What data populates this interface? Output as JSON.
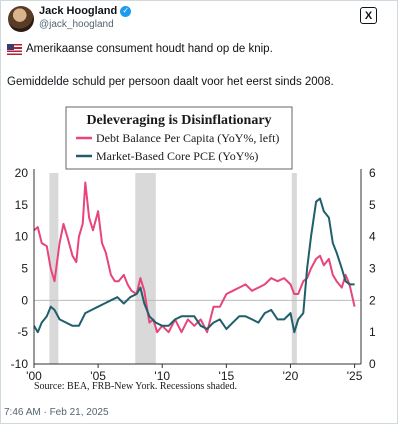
{
  "tweet": {
    "author": "Jack Hoogland",
    "handle": "@jack_hoogland",
    "verified_glyph": "✓",
    "logo_glyph": "X",
    "flag_icon": "us-flag-icon",
    "line1": "Amerikaanse consument houdt hand op de knip.",
    "line2": "Gemiddelde schuld per persoon daalt voor het eerst sinds 2008.",
    "timestamp": "7:46 AM · Feb 21, 2025"
  },
  "chart_data": {
    "type": "line",
    "title": "Deleveraging is Disinflationary",
    "source": "Source: BEA, FRB-New York. Recessions shaded.",
    "xlim": [
      2000,
      2025.5
    ],
    "x_ticks": [
      "'00",
      "'05",
      "'10",
      "'15",
      "'20",
      "'25"
    ],
    "x_tick_values": [
      2000,
      2005,
      2010,
      2015,
      2020,
      2025
    ],
    "y_left": {
      "lim": [
        -10,
        20
      ],
      "ticks": [
        "20",
        "15",
        "10",
        "5",
        "0",
        "-5",
        "-10"
      ],
      "tick_values": [
        20,
        15,
        10,
        5,
        0,
        -5,
        -10
      ]
    },
    "y_right": {
      "lim": [
        0,
        6
      ],
      "ticks": [
        "6",
        "5",
        "4",
        "3",
        "2",
        "1",
        "0"
      ],
      "tick_values": [
        6,
        5,
        4,
        3,
        2,
        1,
        0
      ]
    },
    "legend_position": "top-center",
    "recessions": [
      [
        2001.2,
        2001.9
      ],
      [
        2007.9,
        2009.5
      ],
      [
        2020.1,
        2020.5
      ]
    ],
    "series": [
      {
        "name": "Debt Balance Per Capita (YoY%, left)",
        "axis": "left",
        "color": "#e8457a",
        "x": [
          2000.0,
          2000.3,
          2000.6,
          2001.0,
          2001.3,
          2001.6,
          2002.0,
          2002.3,
          2002.6,
          2003.0,
          2003.3,
          2003.5,
          2003.8,
          2004.0,
          2004.3,
          2004.6,
          2005.0,
          2005.3,
          2005.6,
          2006.0,
          2006.3,
          2006.6,
          2007.0,
          2007.3,
          2007.6,
          2008.0,
          2008.3,
          2008.6,
          2009.0,
          2009.3,
          2009.6,
          2010.0,
          2010.5,
          2011.0,
          2011.5,
          2012.0,
          2012.5,
          2013.0,
          2013.5,
          2014.0,
          2014.5,
          2015.0,
          2015.5,
          2016.0,
          2016.5,
          2017.0,
          2017.5,
          2018.0,
          2018.5,
          2019.0,
          2019.5,
          2020.0,
          2020.3,
          2020.6,
          2021.0,
          2021.3,
          2021.6,
          2022.0,
          2022.3,
          2022.6,
          2023.0,
          2023.3,
          2023.6,
          2024.0,
          2024.3,
          2024.6,
          2025.0
        ],
        "values": [
          11,
          11.5,
          9,
          8.5,
          5,
          3,
          9,
          12,
          10,
          7,
          6,
          10,
          12,
          18.5,
          13,
          11,
          14,
          9,
          7.5,
          4,
          3,
          3,
          4,
          2.5,
          1.5,
          1,
          3.5,
          1.5,
          -3.5,
          -3,
          -5,
          -4,
          -5,
          -3,
          -5,
          -3,
          -4,
          -3,
          -5,
          -1,
          -1,
          1,
          1.5,
          2,
          2.5,
          1.5,
          2,
          2.5,
          3.5,
          3,
          3.5,
          2.5,
          1,
          1,
          3,
          3.5,
          5,
          6.5,
          7,
          5.5,
          6.5,
          4,
          3,
          2,
          4,
          2.5,
          -1
        ]
      },
      {
        "name": "Market-Based Core PCE (YoY%)",
        "axis": "right",
        "color": "#1f5f6b",
        "x": [
          2000.0,
          2000.3,
          2000.6,
          2001.0,
          2001.3,
          2001.6,
          2002.0,
          2002.5,
          2003.0,
          2003.5,
          2004.0,
          2004.5,
          2005.0,
          2005.5,
          2006.0,
          2006.5,
          2007.0,
          2007.5,
          2008.0,
          2008.3,
          2008.6,
          2009.0,
          2009.5,
          2010.0,
          2010.5,
          2011.0,
          2011.5,
          2012.0,
          2012.5,
          2013.0,
          2013.5,
          2014.0,
          2014.5,
          2015.0,
          2015.5,
          2016.0,
          2016.5,
          2017.0,
          2017.5,
          2018.0,
          2018.5,
          2019.0,
          2019.5,
          2020.0,
          2020.3,
          2020.6,
          2021.0,
          2021.3,
          2021.6,
          2022.0,
          2022.3,
          2022.6,
          2023.0,
          2023.3,
          2023.6,
          2024.0,
          2024.3,
          2024.6,
          2025.0
        ],
        "values": [
          1.2,
          1.0,
          1.3,
          1.5,
          1.8,
          1.7,
          1.4,
          1.3,
          1.2,
          1.2,
          1.6,
          1.7,
          1.8,
          1.9,
          2.0,
          2.1,
          1.9,
          2.1,
          2.2,
          2.4,
          1.9,
          1.5,
          1.3,
          1.2,
          1.2,
          1.4,
          1.5,
          1.5,
          1.5,
          1.2,
          1.1,
          1.3,
          1.4,
          1.1,
          1.3,
          1.5,
          1.5,
          1.4,
          1.3,
          1.6,
          1.7,
          1.4,
          1.4,
          1.6,
          1.0,
          1.4,
          1.6,
          3.0,
          4.0,
          5.1,
          5.2,
          4.8,
          4.6,
          3.8,
          3.5,
          3.0,
          2.6,
          2.5,
          2.5
        ]
      }
    ]
  }
}
